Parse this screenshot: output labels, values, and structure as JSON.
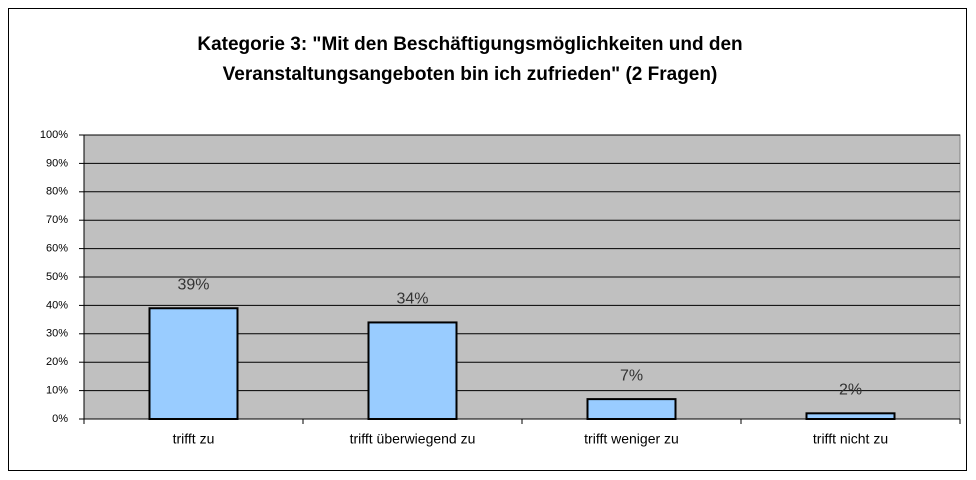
{
  "chart_data": {
    "type": "bar",
    "title": [
      "Kategorie 3: \"Mit den Beschäftigungsmöglichkeiten und den",
      "Veranstaltungsangeboten bin ich zufrieden\" (2 Fragen)"
    ],
    "categories": [
      "trifft zu",
      "trifft überwiegend zu",
      "trifft weniger zu",
      "trifft nicht zu"
    ],
    "values": [
      39,
      34,
      7,
      2
    ],
    "value_labels": [
      "39%",
      "34%",
      "7%",
      "2%"
    ],
    "color": "#99ccff",
    "ylim": [
      0,
      100
    ],
    "yticks": [
      {
        "value": 0,
        "label": "0%"
      },
      {
        "value": 10,
        "label": "10%"
      },
      {
        "value": 20,
        "label": "20%"
      },
      {
        "value": 30,
        "label": "30%"
      },
      {
        "value": 40,
        "label": "40%"
      },
      {
        "value": 50,
        "label": "50%"
      },
      {
        "value": 60,
        "label": "60%"
      },
      {
        "value": 70,
        "label": "70%"
      },
      {
        "value": 80,
        "label": "80%"
      },
      {
        "value": 90,
        "label": "90%"
      },
      {
        "value": 100,
        "label": "100%"
      }
    ],
    "grid": true
  }
}
